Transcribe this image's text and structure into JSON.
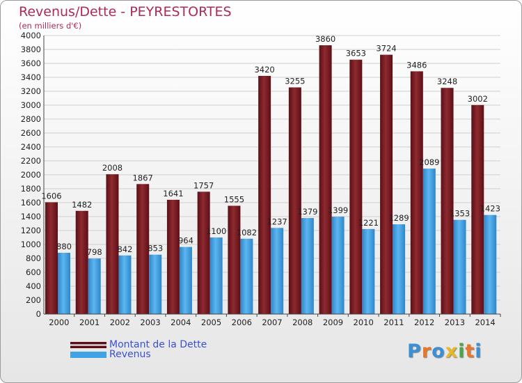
{
  "chart_data": {
    "type": "bar",
    "title": "Revenus/Dette - PEYRESTORTES",
    "subtitle": "(en milliers d'€)",
    "categories": [
      "2000",
      "2001",
      "2002",
      "2003",
      "2004",
      "2005",
      "2006",
      "2007",
      "2008",
      "2009",
      "2010",
      "2011",
      "2012",
      "2013",
      "2014"
    ],
    "series": [
      {
        "name": "Montant de la Dette",
        "color": "#7a1a22",
        "values": [
          1606,
          1482,
          2008,
          1867,
          1641,
          1757,
          1555,
          3420,
          3255,
          3860,
          3653,
          3724,
          3486,
          3248,
          3002
        ]
      },
      {
        "name": "Revenus",
        "color": "#3fa3e6",
        "values": [
          880,
          798,
          842,
          853,
          964,
          1100,
          1082,
          1237,
          1379,
          1399,
          1221,
          1289,
          2089,
          1353,
          1423
        ]
      }
    ],
    "ylim": [
      0,
      4000
    ],
    "ytick_step": 200,
    "grid": true,
    "legend": "bottom-left"
  },
  "legend": {
    "debt_label": "Montant de la Dette",
    "revenue_label": "Revenus"
  },
  "logo": {
    "text": "Proxiti",
    "colors": [
      "#3a8fd6",
      "#e8762b",
      "#3a8fd6",
      "#e8b82b",
      "#4aa64a",
      "#e8762b",
      "#3a8fd6"
    ]
  }
}
